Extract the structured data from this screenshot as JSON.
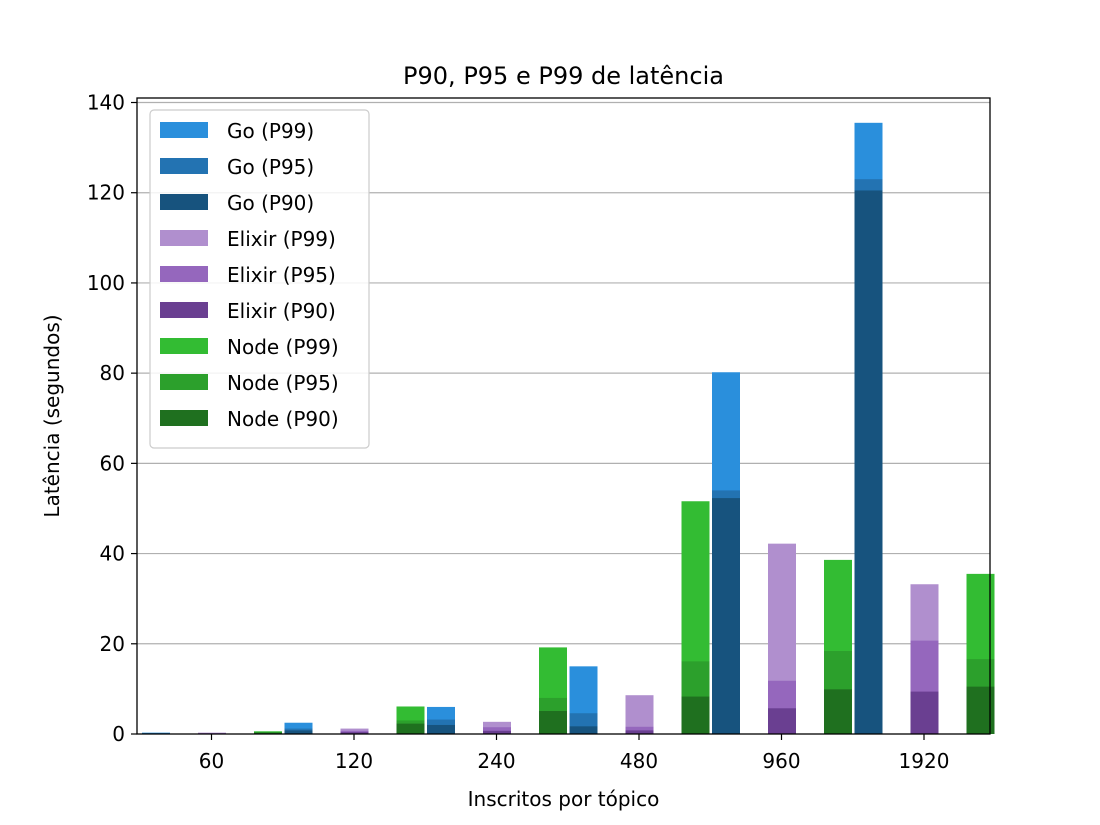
{
  "chart_data": {
    "type": "bar",
    "title": "P90, P95 e P99 de latência",
    "xlabel": "Inscritos por tópico",
    "ylabel": "Latência (segundos)",
    "categories": [
      "60",
      "120",
      "240",
      "480",
      "960",
      "1920"
    ],
    "ylim": [
      0,
      141
    ],
    "yticks": [
      0,
      20,
      40,
      60,
      80,
      100,
      120,
      140
    ],
    "grid": "horizontal",
    "legend_position": "top-left",
    "groups": [
      {
        "name": "Go",
        "series": [
          {
            "name": "Go (P99)",
            "color": "#2a8fdc",
            "values": [
              0.3,
              2.5,
              6.0,
              15.0,
              80.2,
              135.5
            ]
          },
          {
            "name": "Go (P95)",
            "color": "#2373b2",
            "values": [
              0.2,
              1.2,
              3.2,
              4.6,
              54.0,
              123.0
            ]
          },
          {
            "name": "Go (P90)",
            "color": "#17537e",
            "values": [
              0.1,
              0.8,
              2.0,
              1.7,
              52.3,
              120.5
            ]
          }
        ]
      },
      {
        "name": "Elixir",
        "series": [
          {
            "name": "Elixir (P99)",
            "color": "#b08fce",
            "values": [
              0.3,
              1.2,
              2.7,
              8.6,
              42.2,
              33.2
            ]
          },
          {
            "name": "Elixir (P95)",
            "color": "#9567bd",
            "values": [
              0.2,
              0.7,
              1.5,
              1.6,
              11.8,
              20.7
            ]
          },
          {
            "name": "Elixir (P90)",
            "color": "#6a3f91",
            "values": [
              0.1,
              0.4,
              0.7,
              0.8,
              5.7,
              9.4
            ]
          }
        ]
      },
      {
        "name": "Node",
        "series": [
          {
            "name": "Node (P99)",
            "color": "#33bc33",
            "values": [
              0.6,
              6.1,
              19.2,
              51.6,
              38.6,
              35.5
            ]
          },
          {
            "name": "Node (P95)",
            "color": "#2ca02c",
            "values": [
              0.4,
              3.0,
              8.0,
              16.1,
              18.4,
              16.6
            ]
          },
          {
            "name": "Node (P90)",
            "color": "#1f701f",
            "values": [
              0.3,
              2.3,
              5.1,
              8.3,
              9.9,
              10.5
            ]
          }
        ]
      }
    ]
  }
}
